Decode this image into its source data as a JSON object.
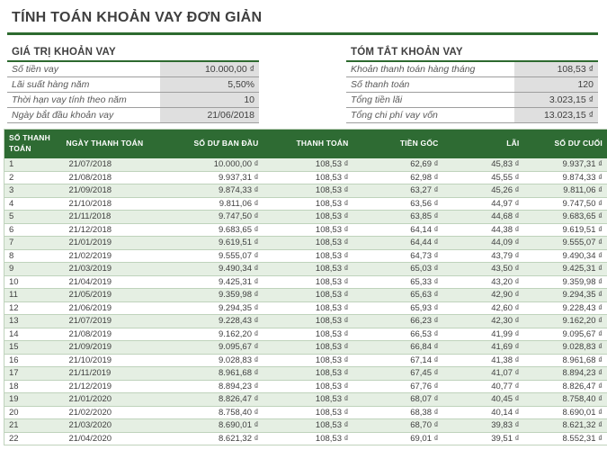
{
  "title": "TÍNH TOÁN KHOẢN VAY ĐƠN GIẢN",
  "colors": {
    "accent_green_dark": "#2d6a2f",
    "table_header_green": "#2e6b33",
    "banded_row_green": "#e5efe3",
    "summary_value_gray": "#dfdfdf",
    "table_border_green": "#bfd3bc",
    "text_dark": "#3f3f3f",
    "label_gray": "#595959"
  },
  "loan_values": {
    "heading": "GIÁ TRỊ KHOẢN VAY",
    "rows": [
      {
        "label": "Số tiền vay",
        "value": "10.000,00 ₫"
      },
      {
        "label": "Lãi suất hàng năm",
        "value": "5,50%"
      },
      {
        "label": "Thời hạn vay tính theo năm",
        "value": "10"
      },
      {
        "label": "Ngày bắt đầu khoản vay",
        "value": "21/06/2018"
      }
    ]
  },
  "loan_summary": {
    "heading": "TÓM TẮT KHOẢN VAY",
    "rows": [
      {
        "label": "Khoản thanh toán hàng tháng",
        "value": "108,53 ₫"
      },
      {
        "label": "Số thanh toán",
        "value": "120"
      },
      {
        "label": "Tổng tiền lãi",
        "value": "3.023,15 ₫"
      },
      {
        "label": "Tổng chi phí vay vốn",
        "value": "13.023,15 ₫"
      }
    ]
  },
  "table": {
    "headers": [
      "SỐ THANH TOÁN",
      "NGÀY THANH TOÁN",
      "SỐ DƯ BAN ĐẦU",
      "THANH TOÁN",
      "TIỀN GỐC",
      "LÃI",
      "SỐ DƯ CUỐI"
    ],
    "rows": [
      [
        "1",
        "21/07/2018",
        "10.000,00 ₫",
        "108,53 ₫",
        "62,69 ₫",
        "45,83 ₫",
        "9.937,31 ₫"
      ],
      [
        "2",
        "21/08/2018",
        "9.937,31 ₫",
        "108,53 ₫",
        "62,98 ₫",
        "45,55 ₫",
        "9.874,33 ₫"
      ],
      [
        "3",
        "21/09/2018",
        "9.874,33 ₫",
        "108,53 ₫",
        "63,27 ₫",
        "45,26 ₫",
        "9.811,06 ₫"
      ],
      [
        "4",
        "21/10/2018",
        "9.811,06 ₫",
        "108,53 ₫",
        "63,56 ₫",
        "44,97 ₫",
        "9.747,50 ₫"
      ],
      [
        "5",
        "21/11/2018",
        "9.747,50 ₫",
        "108,53 ₫",
        "63,85 ₫",
        "44,68 ₫",
        "9.683,65 ₫"
      ],
      [
        "6",
        "21/12/2018",
        "9.683,65 ₫",
        "108,53 ₫",
        "64,14 ₫",
        "44,38 ₫",
        "9.619,51 ₫"
      ],
      [
        "7",
        "21/01/2019",
        "9.619,51 ₫",
        "108,53 ₫",
        "64,44 ₫",
        "44,09 ₫",
        "9.555,07 ₫"
      ],
      [
        "8",
        "21/02/2019",
        "9.555,07 ₫",
        "108,53 ₫",
        "64,73 ₫",
        "43,79 ₫",
        "9.490,34 ₫"
      ],
      [
        "9",
        "21/03/2019",
        "9.490,34 ₫",
        "108,53 ₫",
        "65,03 ₫",
        "43,50 ₫",
        "9.425,31 ₫"
      ],
      [
        "10",
        "21/04/2019",
        "9.425,31 ₫",
        "108,53 ₫",
        "65,33 ₫",
        "43,20 ₫",
        "9.359,98 ₫"
      ],
      [
        "11",
        "21/05/2019",
        "9.359,98 ₫",
        "108,53 ₫",
        "65,63 ₫",
        "42,90 ₫",
        "9.294,35 ₫"
      ],
      [
        "12",
        "21/06/2019",
        "9.294,35 ₫",
        "108,53 ₫",
        "65,93 ₫",
        "42,60 ₫",
        "9.228,43 ₫"
      ],
      [
        "13",
        "21/07/2019",
        "9.228,43 ₫",
        "108,53 ₫",
        "66,23 ₫",
        "42,30 ₫",
        "9.162,20 ₫"
      ],
      [
        "14",
        "21/08/2019",
        "9.162,20 ₫",
        "108,53 ₫",
        "66,53 ₫",
        "41,99 ₫",
        "9.095,67 ₫"
      ],
      [
        "15",
        "21/09/2019",
        "9.095,67 ₫",
        "108,53 ₫",
        "66,84 ₫",
        "41,69 ₫",
        "9.028,83 ₫"
      ],
      [
        "16",
        "21/10/2019",
        "9.028,83 ₫",
        "108,53 ₫",
        "67,14 ₫",
        "41,38 ₫",
        "8.961,68 ₫"
      ],
      [
        "17",
        "21/11/2019",
        "8.961,68 ₫",
        "108,53 ₫",
        "67,45 ₫",
        "41,07 ₫",
        "8.894,23 ₫"
      ],
      [
        "18",
        "21/12/2019",
        "8.894,23 ₫",
        "108,53 ₫",
        "67,76 ₫",
        "40,77 ₫",
        "8.826,47 ₫"
      ],
      [
        "19",
        "21/01/2020",
        "8.826,47 ₫",
        "108,53 ₫",
        "68,07 ₫",
        "40,45 ₫",
        "8.758,40 ₫"
      ],
      [
        "20",
        "21/02/2020",
        "8.758,40 ₫",
        "108,53 ₫",
        "68,38 ₫",
        "40,14 ₫",
        "8.690,01 ₫"
      ],
      [
        "21",
        "21/03/2020",
        "8.690,01 ₫",
        "108,53 ₫",
        "68,70 ₫",
        "39,83 ₫",
        "8.621,32 ₫"
      ],
      [
        "22",
        "21/04/2020",
        "8.621,32 ₫",
        "108,53 ₫",
        "69,01 ₫",
        "39,51 ₫",
        "8.552,31 ₫"
      ]
    ]
  }
}
